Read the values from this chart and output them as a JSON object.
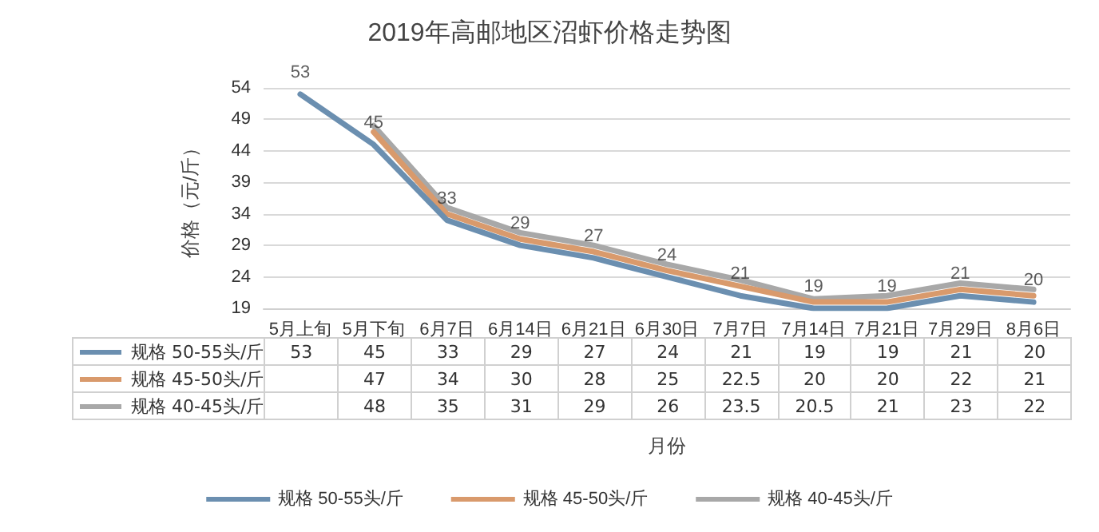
{
  "chart_data": {
    "type": "line",
    "title": "2019年高邮地区沼虾价格走势图",
    "xlabel": "月份",
    "ylabel": "价格（元/斤）",
    "categories": [
      "5月上旬",
      "5月下旬",
      "6月7日",
      "6月14日",
      "6月21日",
      "6月30日",
      "7月7日",
      "7月14日",
      "7月21日",
      "7月29日",
      "8月6日"
    ],
    "series": [
      {
        "name": "规格 50-55头/斤",
        "color": "#6b8fb0",
        "values": [
          53,
          45,
          33,
          29,
          27,
          24,
          21,
          19,
          19,
          21,
          20
        ]
      },
      {
        "name": "规格 45-50头/斤",
        "color": "#d99a6c",
        "values": [
          null,
          47,
          34,
          30,
          28,
          25,
          22.5,
          20,
          20,
          22,
          21
        ]
      },
      {
        "name": "规格 40-45头/斤",
        "color": "#a8a8a8",
        "values": [
          null,
          48,
          35,
          31,
          29,
          26,
          23.5,
          20.5,
          21,
          23,
          22
        ]
      }
    ],
    "annotations": [
      {
        "text": "53",
        "x": "5月上旬",
        "y": 53
      },
      {
        "text": "45",
        "x": "5月下旬",
        "y": 45
      },
      {
        "text": "33",
        "x": "6月7日",
        "y": 33
      },
      {
        "text": "29",
        "x": "6月14日",
        "y": 29
      },
      {
        "text": "27",
        "x": "6月21日",
        "y": 27
      },
      {
        "text": "24",
        "x": "6月30日",
        "y": 24
      },
      {
        "text": "21",
        "x": "7月7日",
        "y": 21
      },
      {
        "text": "19",
        "x": "7月14日",
        "y": 19
      },
      {
        "text": "19",
        "x": "7月21日",
        "y": 19
      },
      {
        "text": "21",
        "x": "7月29日",
        "y": 21
      },
      {
        "text": "20",
        "x": "8月6日",
        "y": 20
      }
    ],
    "ylim": [
      19,
      54
    ],
    "yticks": [
      19,
      24,
      29,
      34,
      39,
      44,
      49,
      54
    ],
    "grid": "y",
    "legend": "bottom",
    "marker": "none",
    "line_style": "solid",
    "data_labels": true
  }
}
